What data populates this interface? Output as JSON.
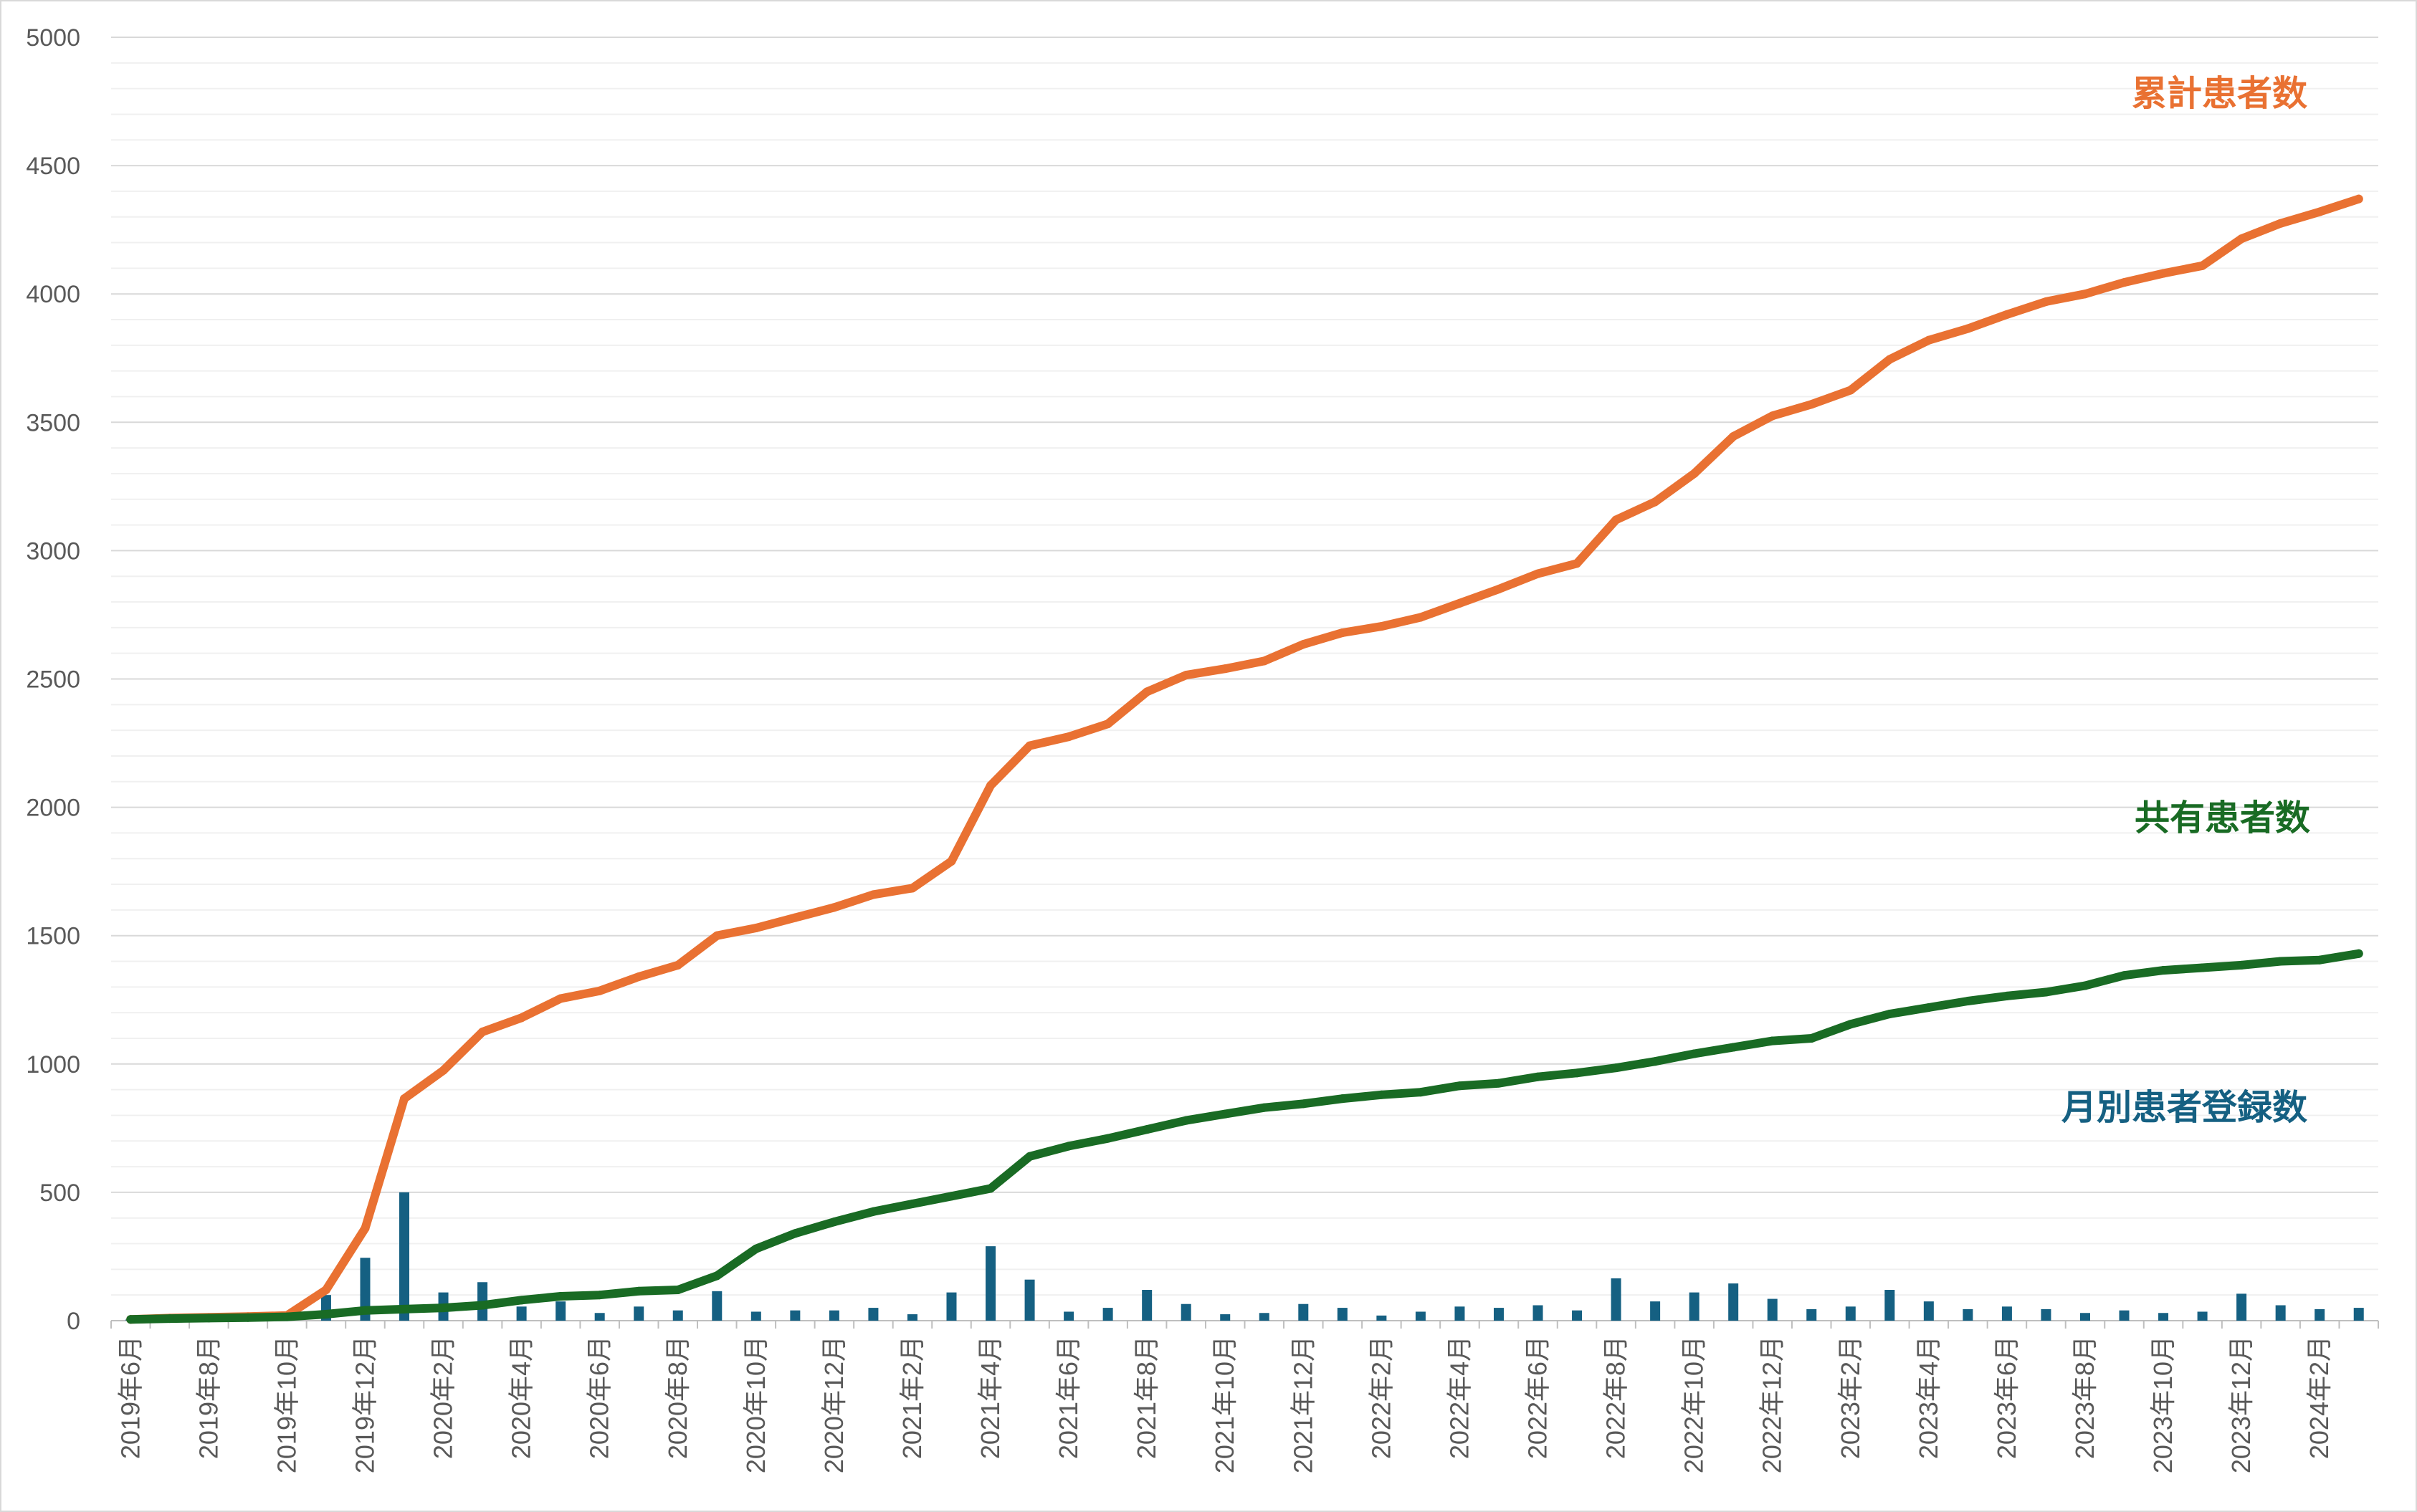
{
  "chart_data": {
    "type": "bar",
    "categories": [
      "2019年6月",
      "2019年7月",
      "2019年8月",
      "2019年9月",
      "2019年10月",
      "2019年11月",
      "2019年12月",
      "2020年1月",
      "2020年2月",
      "2020年3月",
      "2020年4月",
      "2020年5月",
      "2020年6月",
      "2020年7月",
      "2020年8月",
      "2020年9月",
      "2020年10月",
      "2020年11月",
      "2020年12月",
      "2021年1月",
      "2021年2月",
      "2021年3月",
      "2021年4月",
      "2021年5月",
      "2021年6月",
      "2021年7月",
      "2021年8月",
      "2021年9月",
      "2021年10月",
      "2021年11月",
      "2021年12月",
      "2022年1月",
      "2022年2月",
      "2022年3月",
      "2022年4月",
      "2022年5月",
      "2022年6月",
      "2022年7月",
      "2022年8月",
      "2022年9月",
      "2022年10月",
      "2022年11月",
      "2022年12月",
      "2023年1月",
      "2023年2月",
      "2023年3月",
      "2023年4月",
      "2023年5月",
      "2023年6月",
      "2023年7月",
      "2023年8月",
      "2023年9月",
      "2023年10月",
      "2023年11月",
      "2023年12月",
      "2024年1月",
      "2024年2月",
      "2024年3月"
    ],
    "series": [
      {
        "name": "月別患者登録数",
        "type": "bar",
        "color": "#156082",
        "values": [
          5,
          5,
          3,
          3,
          5,
          100,
          245,
          500,
          110,
          150,
          55,
          75,
          30,
          55,
          40,
          115,
          35,
          40,
          40,
          50,
          25,
          110,
          290,
          160,
          35,
          50,
          120,
          65,
          25,
          30,
          65,
          50,
          20,
          35,
          55,
          50,
          60,
          40,
          165,
          75,
          110,
          145,
          85,
          45,
          55,
          120,
          75,
          45,
          55,
          45,
          30,
          40,
          30,
          35,
          105,
          60,
          45,
          50
        ]
      },
      {
        "name": "累計患者数",
        "type": "line",
        "color": "#E97132",
        "values": [
          5,
          10,
          13,
          16,
          20,
          120,
          360,
          865,
          975,
          1125,
          1180,
          1255,
          1285,
          1340,
          1385,
          1500,
          1530,
          1570,
          1610,
          1660,
          1685,
          1790,
          2085,
          2240,
          2275,
          2325,
          2450,
          2515,
          2540,
          2570,
          2635,
          2680,
          2705,
          2740,
          2795,
          2850,
          2910,
          2950,
          3120,
          3190,
          3300,
          3445,
          3525,
          3570,
          3625,
          3745,
          3820,
          3865,
          3920,
          3970,
          4000,
          4045,
          4080,
          4110,
          4215,
          4275,
          4320,
          4370
        ]
      },
      {
        "name": "共有患者数",
        "type": "line",
        "color": "#196B24",
        "values": [
          5,
          8,
          10,
          12,
          15,
          25,
          40,
          45,
          50,
          60,
          80,
          95,
          100,
          115,
          120,
          175,
          280,
          340,
          385,
          425,
          455,
          485,
          515,
          640,
          680,
          710,
          745,
          780,
          805,
          830,
          845,
          865,
          880,
          890,
          915,
          925,
          950,
          965,
          985,
          1010,
          1040,
          1065,
          1090,
          1100,
          1155,
          1195,
          1220,
          1245,
          1265,
          1280,
          1305,
          1345,
          1365,
          1375,
          1385,
          1400,
          1405,
          1430
        ]
      }
    ],
    "ylim": [
      0,
      5000
    ],
    "yticks": [
      0,
      500,
      1000,
      1500,
      2000,
      2500,
      3000,
      3500,
      4000,
      4500,
      5000
    ],
    "y_major_unit": 500,
    "y_minor_unit": 100,
    "grid": true
  }
}
